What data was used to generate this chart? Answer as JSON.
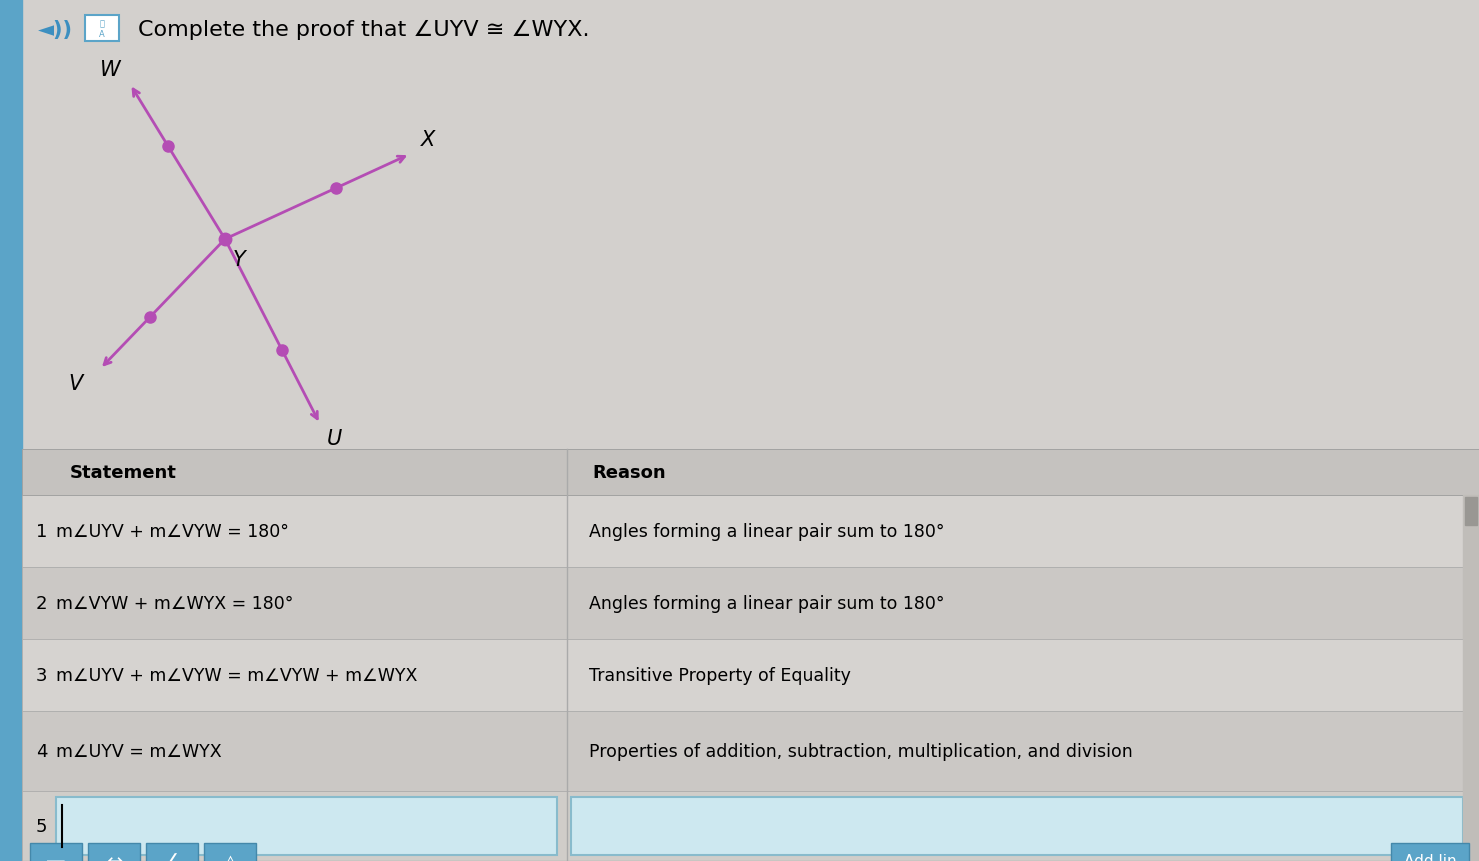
{
  "title": "Complete the proof that ∠UYV ≅ ∠WYX.",
  "bg_color": "#d3d0cd",
  "top_bg": "#cccac7",
  "table_bg_even": "#d6d3d0",
  "table_bg_odd": "#cbc8c5",
  "header_bg": "#c8c5c2",
  "line_color": "#b44db4",
  "dot_color": "#b44db4",
  "sidebar_color": "#5ba4c8",
  "rows": [
    {
      "num": "1",
      "statement": "m∠UYV + m∠VYW = 180°",
      "reason": "Angles forming a linear pair sum to 180°"
    },
    {
      "num": "2",
      "statement": "m∠VYW + m∠WYX = 180°",
      "reason": "Angles forming a linear pair sum to 180°"
    },
    {
      "num": "3",
      "statement": "m∠UYV + m∠VYW = m∠VYW + m∠WYX",
      "reason": "Transitive Property of Equality"
    },
    {
      "num": "4",
      "statement": "m∠UYV = m∠WYX",
      "reason": "Properties of addition, subtraction, multiplication, and division"
    },
    {
      "num": "5",
      "statement": "",
      "reason": ""
    }
  ],
  "buttons": [
    "—",
    "↔",
    "∠",
    "△"
  ],
  "add_line_text": "Add lin"
}
